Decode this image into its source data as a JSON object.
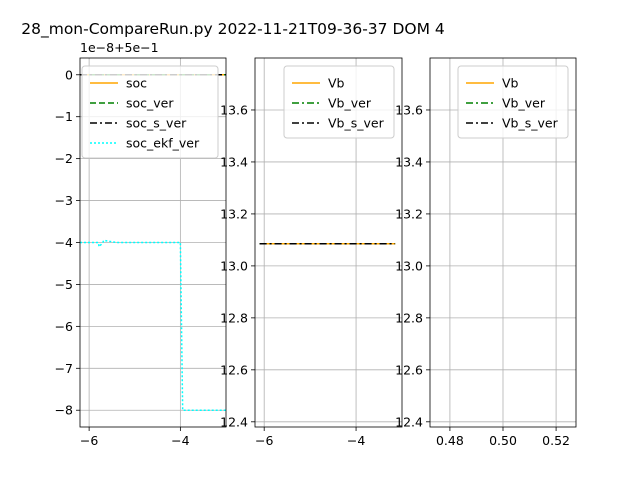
{
  "title": "28_mon-CompareRun.py   2022-11-21T09-36-37 DOM 4",
  "chart_data": [
    {
      "type": "line",
      "offset_text": "1e−8+5e−1",
      "xlim": [
        -6.2,
        -3.0
      ],
      "ylim": [
        -8.4,
        0.4
      ],
      "xticks": [
        {
          "v": -6,
          "label": "−6"
        },
        {
          "v": -4,
          "label": "−4"
        }
      ],
      "yticks": [
        {
          "v": 0,
          "label": "0"
        },
        {
          "v": -1,
          "label": "−1"
        },
        {
          "v": -2,
          "label": "−2"
        },
        {
          "v": -3,
          "label": "−3"
        },
        {
          "v": -4,
          "label": "−4"
        },
        {
          "v": -5,
          "label": "−5"
        },
        {
          "v": -6,
          "label": "−6"
        },
        {
          "v": -7,
          "label": "−7"
        },
        {
          "v": -8,
          "label": "−8"
        }
      ],
      "grid": true,
      "legend_position": "upper-right",
      "series": [
        {
          "name": "soc",
          "color": "#ffa500",
          "dash": "solid",
          "x": [
            -6.2,
            -3.0
          ],
          "y": [
            0,
            0
          ]
        },
        {
          "name": "soc_ver",
          "color": "#008000",
          "dash": "dashed",
          "x": [
            -6.2,
            -3.0
          ],
          "y": [
            0,
            0
          ]
        },
        {
          "name": "soc_s_ver",
          "color": "#000000",
          "dash": "dashdot",
          "x": [
            -6.2,
            -3.0
          ],
          "y": [
            0,
            0
          ]
        },
        {
          "name": "soc_ekf_ver",
          "color": "#00ffff",
          "dash": "dotted",
          "x": [
            -6.2,
            -5.8,
            -5.78,
            -5.7,
            -5.68,
            -5.4,
            -4.0,
            -3.95,
            -3.9,
            -3.0
          ],
          "y": [
            -4.0,
            -4.0,
            -4.1,
            -4.0,
            -3.95,
            -4.0,
            -4.0,
            -8.0,
            -8.0,
            -8.0
          ]
        }
      ]
    },
    {
      "type": "line",
      "xlim": [
        -6.2,
        -3.0
      ],
      "ylim": [
        12.38,
        13.8
      ],
      "xticks": [
        {
          "v": -6,
          "label": "−6"
        },
        {
          "v": -4,
          "label": "−4"
        }
      ],
      "yticks": [
        {
          "v": 12.4,
          "label": "12.4"
        },
        {
          "v": 12.6,
          "label": "12.6"
        },
        {
          "v": 12.8,
          "label": "12.8"
        },
        {
          "v": 13.0,
          "label": "13.0"
        },
        {
          "v": 13.2,
          "label": "13.2"
        },
        {
          "v": 13.4,
          "label": "13.4"
        },
        {
          "v": 13.6,
          "label": "13.6"
        }
      ],
      "grid": true,
      "legend_position": "upper-right",
      "series": [
        {
          "name": "Vb",
          "color": "#ffa500",
          "dash": "solid",
          "x": [
            -6.1,
            -3.15
          ],
          "y": [
            13.085,
            13.085
          ]
        },
        {
          "name": "Vb_ver",
          "color": "#008000",
          "dash": "dashdot",
          "x": [
            -6.1,
            -3.15
          ],
          "y": [
            13.085,
            13.085
          ]
        },
        {
          "name": "Vb_s_ver",
          "color": "#000000",
          "dash": "dashdot",
          "x": [
            -6.1,
            -3.15
          ],
          "y": [
            13.085,
            13.085
          ]
        }
      ]
    },
    {
      "type": "line",
      "xlim": [
        0.4725,
        0.5275
      ],
      "ylim": [
        12.38,
        13.8
      ],
      "xticks": [
        {
          "v": 0.48,
          "label": "0.48"
        },
        {
          "v": 0.5,
          "label": "0.50"
        },
        {
          "v": 0.52,
          "label": "0.52"
        }
      ],
      "yticks": [
        {
          "v": 12.4,
          "label": "12.4"
        },
        {
          "v": 12.6,
          "label": "12.6"
        },
        {
          "v": 12.8,
          "label": "12.8"
        },
        {
          "v": 13.0,
          "label": "13.0"
        },
        {
          "v": 13.2,
          "label": "13.2"
        },
        {
          "v": 13.4,
          "label": "13.4"
        },
        {
          "v": 13.6,
          "label": "13.6"
        }
      ],
      "grid": true,
      "legend_position": "upper-right",
      "series": [
        {
          "name": "Vb",
          "color": "#ffa500",
          "dash": "solid",
          "x": [],
          "y": []
        },
        {
          "name": "Vb_ver",
          "color": "#008000",
          "dash": "dashdot",
          "x": [],
          "y": []
        },
        {
          "name": "Vb_s_ver",
          "color": "#000000",
          "dash": "dashdot",
          "x": [],
          "y": []
        }
      ]
    }
  ]
}
